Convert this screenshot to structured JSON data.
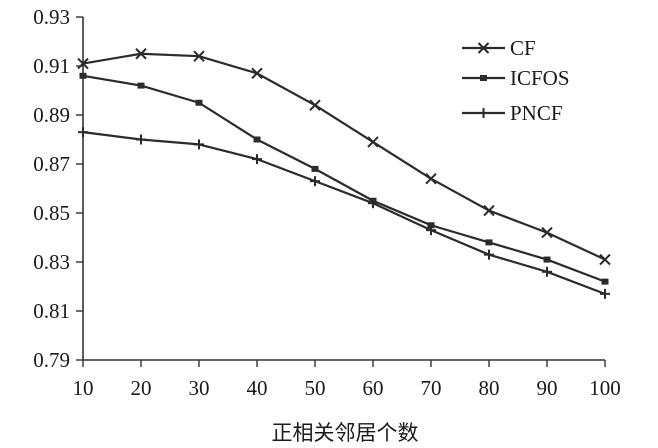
{
  "chart_data": {
    "type": "line",
    "title": "",
    "xlabel": "正相关邻居个数",
    "ylabel": "",
    "x": [
      10,
      20,
      30,
      40,
      50,
      60,
      70,
      80,
      90,
      100
    ],
    "xticks": [
      "10",
      "20",
      "30",
      "40",
      "50",
      "60",
      "70",
      "80",
      "90",
      "100"
    ],
    "xlim": [
      10,
      100
    ],
    "yticks": [
      "0.93",
      "0.91",
      "0.89",
      "0.87",
      "0.85",
      "0.83",
      "0.81",
      "0.79"
    ],
    "ylim": [
      0.79,
      0.93
    ],
    "grid": false,
    "legend_position": "top-right",
    "series": [
      {
        "name": "CF",
        "marker": "x",
        "values": [
          0.911,
          0.915,
          0.914,
          0.907,
          0.894,
          0.879,
          0.864,
          0.851,
          0.842,
          0.831
        ]
      },
      {
        "name": "ICFOS",
        "marker": "square",
        "values": [
          0.906,
          0.902,
          0.895,
          0.88,
          0.868,
          0.855,
          0.845,
          0.838,
          0.831,
          0.822
        ]
      },
      {
        "name": "PNCF",
        "marker": "plus",
        "values": [
          0.883,
          0.88,
          0.878,
          0.872,
          0.863,
          0.854,
          0.843,
          0.833,
          0.826,
          0.817
        ]
      }
    ],
    "line_color": "#2b2b2b"
  }
}
